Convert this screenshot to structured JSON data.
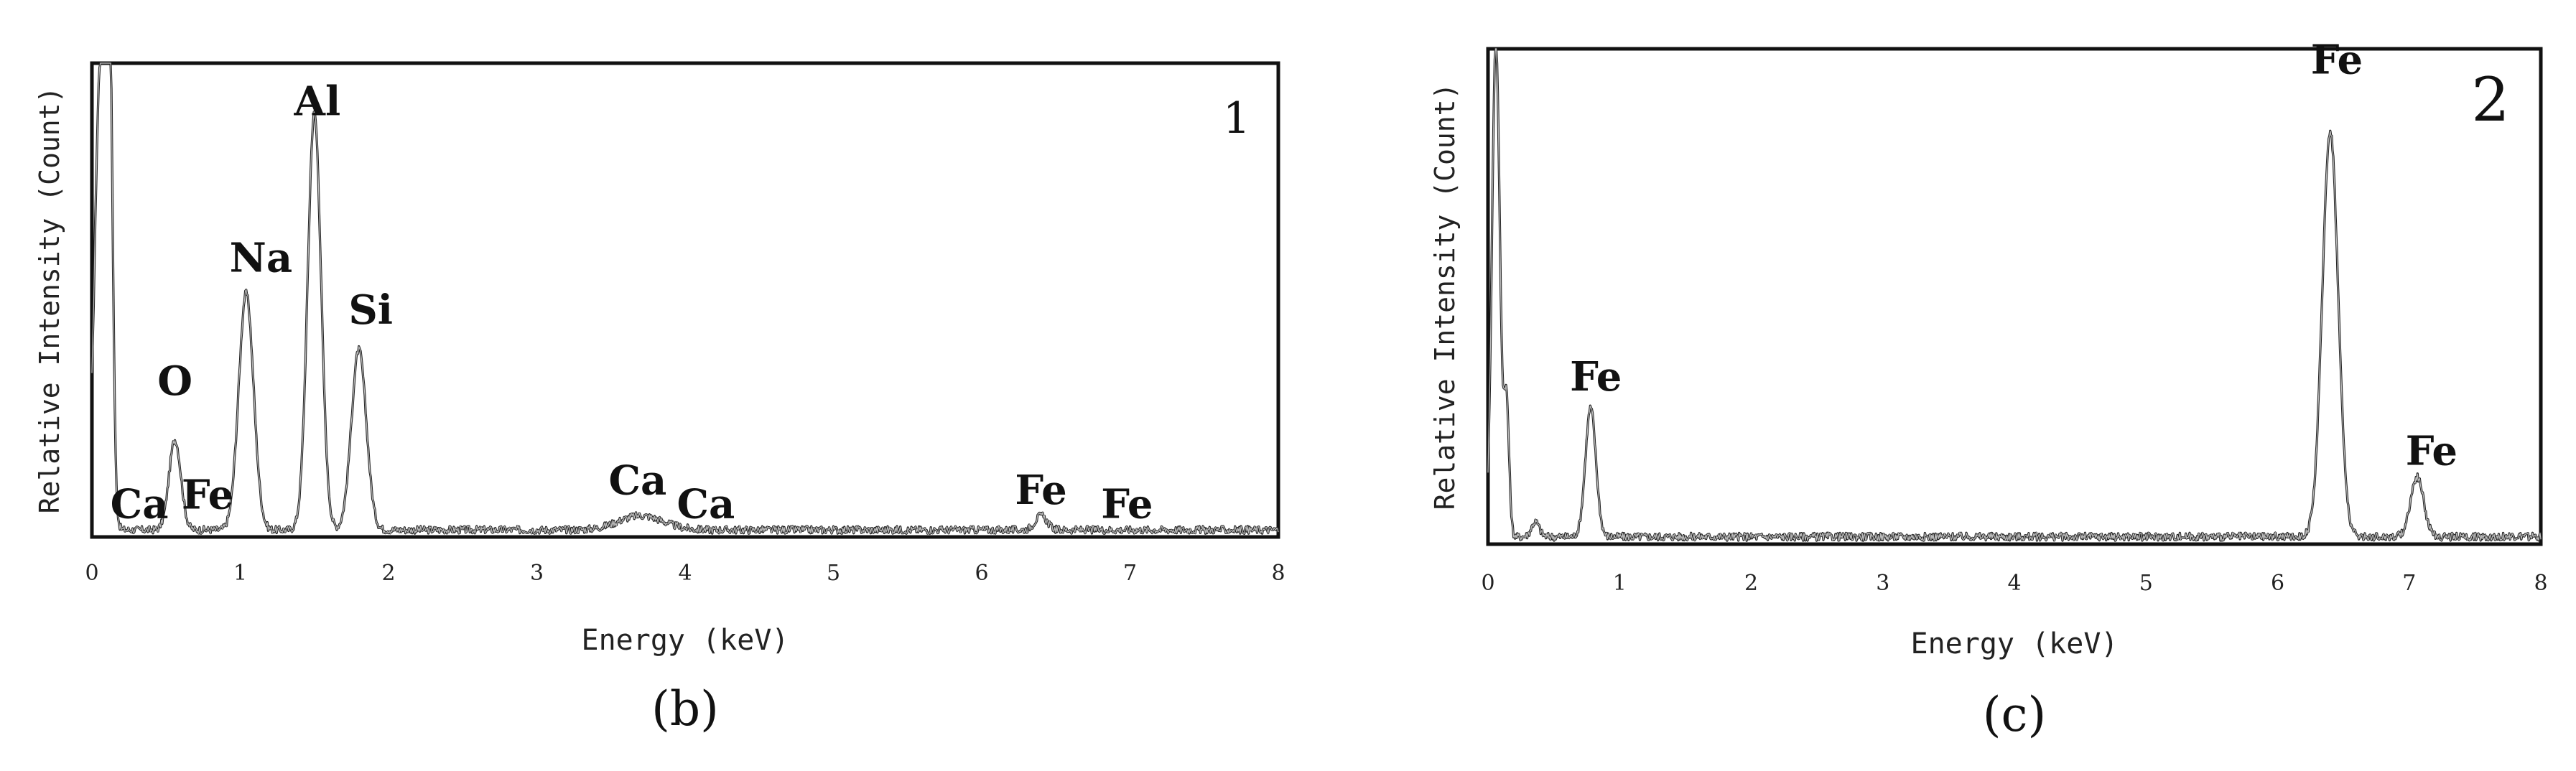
{
  "chart_data": [
    {
      "type": "line",
      "panel_label": "(b)",
      "corner_label": "1",
      "xlabel": "Energy (keV)",
      "ylabel": "Relative Intensity (Count)",
      "xlim": [
        0,
        8
      ],
      "ylim": [
        0,
        100
      ],
      "xticks": [
        "0",
        "1",
        "2",
        "3",
        "4",
        "5",
        "6",
        "7",
        "8"
      ],
      "grid": false,
      "spectrum_peaks": [
        {
          "x": 0.06,
          "y": 100,
          "width": 0.04
        },
        {
          "x": 0.12,
          "y": 85,
          "width": 0.02
        },
        {
          "x": 0.56,
          "y": 19,
          "width": 0.04
        },
        {
          "x": 1.04,
          "y": 50,
          "width": 0.05
        },
        {
          "x": 1.5,
          "y": 88,
          "width": 0.045
        },
        {
          "x": 1.8,
          "y": 38,
          "width": 0.05
        },
        {
          "x": 3.7,
          "y": 3,
          "width": 0.15
        },
        {
          "x": 6.4,
          "y": 3,
          "width": 0.04
        }
      ],
      "baseline": 1.5,
      "annotations": [
        {
          "text": "O",
          "x": 0.56,
          "y": 30
        },
        {
          "text": "Ca",
          "x": 0.32,
          "y": 4
        },
        {
          "text": "Fe",
          "x": 0.78,
          "y": 6
        },
        {
          "text": "Na",
          "x": 1.14,
          "y": 56
        },
        {
          "text": "Al",
          "x": 1.52,
          "y": 89
        },
        {
          "text": "Si",
          "x": 1.88,
          "y": 45
        },
        {
          "text": "Ca",
          "x": 3.68,
          "y": 9
        },
        {
          "text": "Ca",
          "x": 4.14,
          "y": 4
        },
        {
          "text": "Fe",
          "x": 6.4,
          "y": 7
        },
        {
          "text": "Fe",
          "x": 6.98,
          "y": 4
        }
      ]
    },
    {
      "type": "line",
      "panel_label": "(c)",
      "corner_label": "2",
      "xlabel": "Energy (keV)",
      "ylabel": "Relative Intensity (Count)",
      "xlim": [
        0,
        8
      ],
      "ylim": [
        0,
        100
      ],
      "xticks": [
        "0",
        "1",
        "2",
        "3",
        "4",
        "5",
        "6",
        "7",
        "8"
      ],
      "grid": false,
      "spectrum_peaks": [
        {
          "x": 0.06,
          "y": 100,
          "width": 0.03
        },
        {
          "x": 0.14,
          "y": 27,
          "width": 0.02
        },
        {
          "x": 0.36,
          "y": 3,
          "width": 0.03
        },
        {
          "x": 0.78,
          "y": 26,
          "width": 0.04
        },
        {
          "x": 6.4,
          "y": 82,
          "width": 0.06
        },
        {
          "x": 7.06,
          "y": 12,
          "width": 0.05
        }
      ],
      "baseline": 1.5,
      "annotations": [
        {
          "text": "Fe",
          "x": 0.82,
          "y": 31
        },
        {
          "text": "Fe",
          "x": 6.45,
          "y": 95
        },
        {
          "text": "Fe",
          "x": 7.17,
          "y": 16
        }
      ]
    }
  ]
}
